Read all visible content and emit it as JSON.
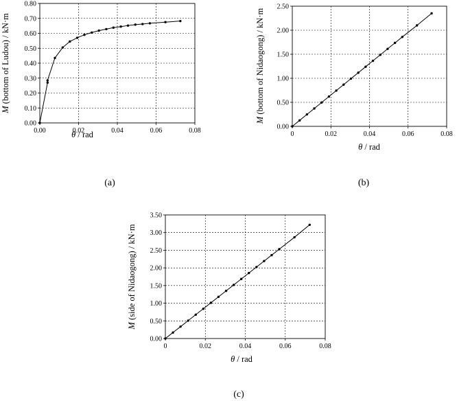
{
  "chart_data": [
    {
      "type": "line",
      "caption": "(a)",
      "xlabel": {
        "sym": "θ",
        "rest": " / rad"
      },
      "ylabel": {
        "sym": "M",
        "rest": " (bottom of Ludou) / kN·m"
      },
      "xlim": [
        0,
        0.08
      ],
      "ylim": [
        0,
        0.8
      ],
      "xticks": [
        "0.00",
        "0.02",
        "0.04",
        "0.06",
        "0.08"
      ],
      "yticks": [
        "0.00",
        "0.10",
        "0.20",
        "0.30",
        "0.40",
        "0.50",
        "0.60",
        "0.70",
        "0.80"
      ],
      "grid": true,
      "x": [
        0,
        0.004,
        0.004,
        0.0078,
        0.0118,
        0.0155,
        0.0193,
        0.023,
        0.0268,
        0.0305,
        0.0343,
        0.038,
        0.0418,
        0.0455,
        0.0493,
        0.053,
        0.0568,
        0.0648,
        0.0725
      ],
      "y": [
        0,
        0.27,
        0.285,
        0.435,
        0.505,
        0.545,
        0.57,
        0.59,
        0.605,
        0.618,
        0.628,
        0.638,
        0.645,
        0.652,
        0.658,
        0.662,
        0.667,
        0.675,
        0.682
      ]
    },
    {
      "type": "line",
      "caption": "(b)",
      "xlabel": {
        "sym": "θ",
        "rest": " / rad"
      },
      "ylabel": {
        "sym": "M",
        "rest": " (bottom of Nidaogong) / kN·m"
      },
      "xlim": [
        0,
        0.08
      ],
      "ylim": [
        0,
        2.5
      ],
      "xticks": [
        "0",
        "0.02",
        "0.04",
        "0.06",
        "0.08"
      ],
      "yticks": [
        "0.00",
        "0.50",
        "1.00",
        "1.50",
        "2.00",
        "2.50"
      ],
      "grid": true,
      "x": [
        0,
        0.0038,
        0.0076,
        0.0114,
        0.0152,
        0.019,
        0.0228,
        0.0266,
        0.0304,
        0.0342,
        0.038,
        0.0418,
        0.0456,
        0.0494,
        0.0532,
        0.057,
        0.0646,
        0.0722
      ],
      "y": [
        0,
        0.124,
        0.248,
        0.372,
        0.496,
        0.62,
        0.744,
        0.868,
        0.992,
        1.116,
        1.24,
        1.364,
        1.488,
        1.612,
        1.736,
        1.86,
        2.1,
        2.35
      ]
    },
    {
      "type": "line",
      "caption": "(c)",
      "xlabel": {
        "sym": "θ",
        "rest": " / rad"
      },
      "ylabel": {
        "sym": "M",
        "rest": " (side of Nidaogong) / kN·m"
      },
      "xlim": [
        0,
        0.08
      ],
      "ylim": [
        0,
        3.5
      ],
      "xticks": [
        "0",
        "0.02",
        "0.04",
        "0.06",
        "0.08"
      ],
      "yticks": [
        "0.00",
        "0.50",
        "1.00",
        "1.50",
        "2.00",
        "2.50",
        "3.00",
        "3.50"
      ],
      "grid": true,
      "x": [
        0,
        0.0038,
        0.0076,
        0.0114,
        0.0152,
        0.019,
        0.0228,
        0.0266,
        0.0304,
        0.0342,
        0.038,
        0.0418,
        0.0456,
        0.0494,
        0.0532,
        0.057,
        0.0646,
        0.0722
      ],
      "y": [
        0,
        0.169,
        0.337,
        0.506,
        0.675,
        0.843,
        1.012,
        1.181,
        1.349,
        1.518,
        1.687,
        1.855,
        2.024,
        2.193,
        2.361,
        2.53,
        2.867,
        3.22
      ]
    }
  ]
}
